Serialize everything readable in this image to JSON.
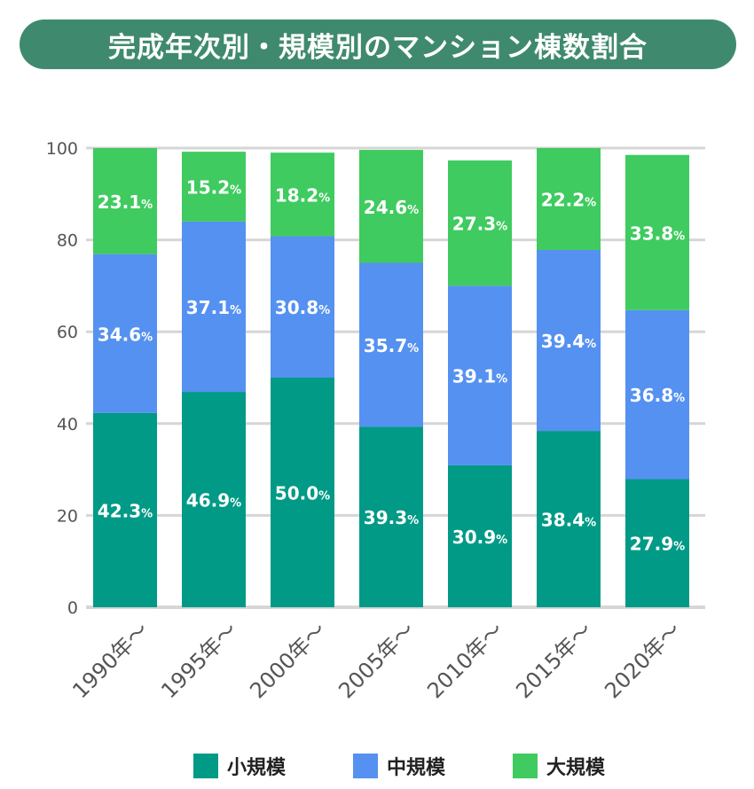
{
  "title": "完成年次別・規模別のマンション棟数割合",
  "chart_data": {
    "type": "bar",
    "stacked": true,
    "categories": [
      "1990年〜",
      "1995年〜",
      "2000年〜",
      "2005年〜",
      "2010年〜",
      "2015年〜",
      "2020年〜"
    ],
    "series": [
      {
        "name": "小規模",
        "color": "#009a86",
        "values": [
          42.3,
          46.9,
          50.0,
          39.3,
          30.9,
          38.4,
          27.9
        ]
      },
      {
        "name": "中規模",
        "color": "#5591f0",
        "values": [
          34.6,
          37.1,
          30.8,
          35.7,
          39.1,
          39.4,
          36.8
        ]
      },
      {
        "name": "大規模",
        "color": "#3fcb5f",
        "values": [
          23.1,
          15.2,
          18.2,
          24.6,
          27.3,
          22.2,
          33.8
        ]
      }
    ],
    "ylim": [
      0,
      100
    ],
    "yticks": [
      0,
      20,
      40,
      60,
      80,
      100
    ],
    "grid": true,
    "legend": "bottom",
    "value_suffix": "%"
  }
}
